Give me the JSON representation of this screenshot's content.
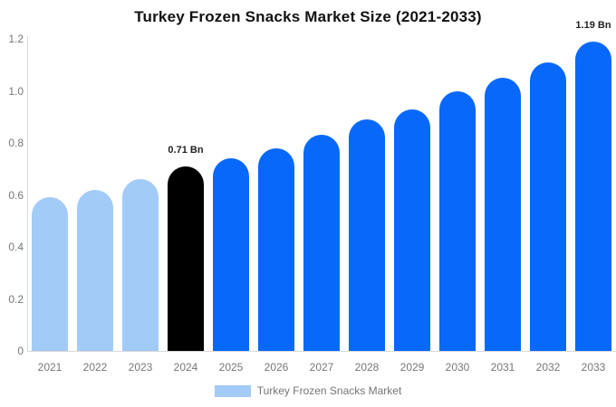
{
  "chart_data": {
    "type": "bar",
    "title": "Turkey Frozen Snacks Market Size (2021-2033)",
    "categories": [
      "2021",
      "2022",
      "2023",
      "2024",
      "2025",
      "2026",
      "2027",
      "2028",
      "2029",
      "2030",
      "2031",
      "2032",
      "2033"
    ],
    "values": [
      0.59,
      0.62,
      0.66,
      0.71,
      0.74,
      0.78,
      0.83,
      0.89,
      0.93,
      1.0,
      1.05,
      1.11,
      1.19
    ],
    "bar_colors": [
      "#a2cbf8",
      "#a2cbf8",
      "#a2cbf8",
      "#000000",
      "#0768fa",
      "#0768fa",
      "#0768fa",
      "#0768fa",
      "#0768fa",
      "#0768fa",
      "#0768fa",
      "#0768fa",
      "#0768fa"
    ],
    "annotations": [
      {
        "category": "2024",
        "text": "0.71 Bn"
      },
      {
        "category": "2033",
        "text": "1.19 Bn"
      }
    ],
    "xlabel": "",
    "ylabel": "",
    "ylim": [
      0,
      1.2
    ],
    "yticks": [
      0,
      0.2,
      0.4,
      0.6,
      0.8,
      1.0,
      1.2
    ],
    "ytick_labels": [
      "0",
      "0.2",
      "0.4",
      "0.6",
      "0.8",
      "1.0",
      "1.2"
    ],
    "grid": false,
    "legend": {
      "position": "bottom-center",
      "label": "Turkey Frozen Snacks Market",
      "swatch_color": "#a2cbf8"
    }
  },
  "colors": {
    "bar_historical": "#a2cbf8",
    "bar_highlight": "#000000",
    "bar_forecast": "#0768fa",
    "axis_line": "#d9d9d9",
    "tick_text": "#777777",
    "annotation_text": "#1f1f1f",
    "title_text": "#111111",
    "background": "#ffffff"
  }
}
